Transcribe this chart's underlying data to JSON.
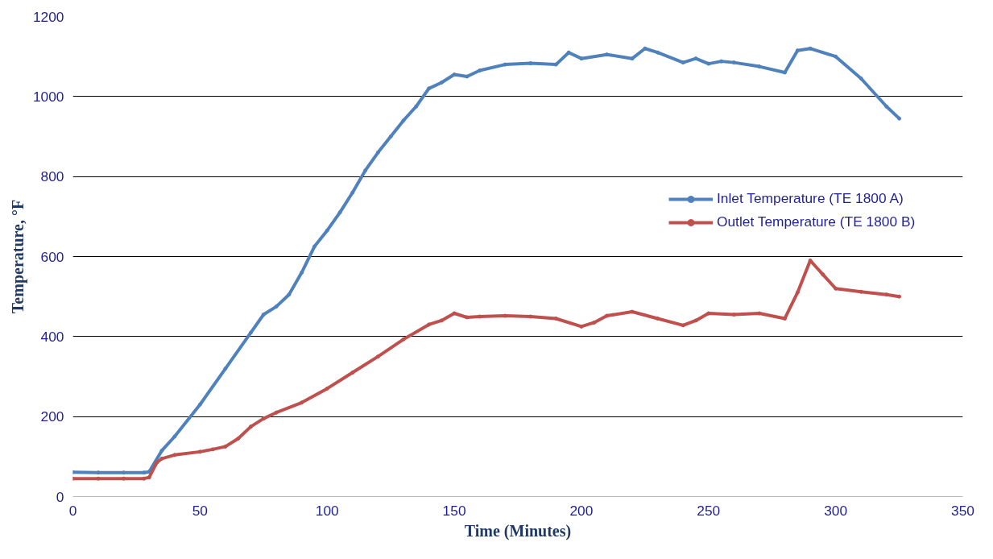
{
  "chart_data": {
    "type": "line",
    "xlabel": "Time (Minutes)",
    "ylabel": "Temperature, °F",
    "xlim": [
      0,
      350
    ],
    "ylim": [
      0,
      1200
    ],
    "xticks": [
      0,
      50,
      100,
      150,
      200,
      250,
      300,
      350
    ],
    "yticks": [
      0,
      200,
      400,
      600,
      800,
      1000,
      1200
    ],
    "grid": "y",
    "legend": "right",
    "marker": "circle",
    "line_style": "solid",
    "series": [
      {
        "name": "Inlet Temperature (TE 1800 A)",
        "color": "#4f81bd",
        "x": [
          0,
          10,
          20,
          28,
          30,
          35,
          40,
          50,
          60,
          70,
          75,
          80,
          85,
          90,
          95,
          100,
          105,
          110,
          115,
          120,
          125,
          130,
          135,
          140,
          145,
          150,
          155,
          160,
          170,
          180,
          190,
          195,
          200,
          210,
          220,
          225,
          230,
          240,
          245,
          250,
          255,
          260,
          270,
          280,
          285,
          290,
          300,
          310,
          320,
          325
        ],
        "values": [
          61,
          60,
          60,
          60,
          62,
          115,
          150,
          230,
          320,
          410,
          455,
          475,
          505,
          560,
          625,
          665,
          710,
          760,
          815,
          860,
          900,
          940,
          975,
          1020,
          1035,
          1055,
          1050,
          1065,
          1080,
          1083,
          1080,
          1110,
          1095,
          1105,
          1095,
          1120,
          1110,
          1085,
          1095,
          1082,
          1088,
          1085,
          1075,
          1060,
          1115,
          1120,
          1100,
          1045,
          975,
          945
        ]
      },
      {
        "name": "Outlet Temperature (TE 1800 B)",
        "color": "#c0504d",
        "x": [
          0,
          10,
          20,
          28,
          30,
          33,
          35,
          40,
          50,
          55,
          60,
          65,
          70,
          75,
          80,
          90,
          100,
          110,
          120,
          130,
          140,
          145,
          150,
          155,
          160,
          170,
          180,
          190,
          200,
          205,
          210,
          220,
          230,
          240,
          245,
          250,
          260,
          270,
          280,
          285,
          290,
          295,
          300,
          310,
          320,
          325
        ],
        "values": [
          45,
          45,
          45,
          45,
          48,
          85,
          95,
          104,
          112,
          118,
          125,
          145,
          175,
          195,
          210,
          235,
          270,
          310,
          350,
          393,
          430,
          440,
          458,
          448,
          450,
          452,
          450,
          445,
          425,
          435,
          452,
          462,
          445,
          428,
          440,
          458,
          455,
          458,
          445,
          510,
          590,
          555,
          520,
          512,
          505,
          500
        ]
      }
    ]
  }
}
